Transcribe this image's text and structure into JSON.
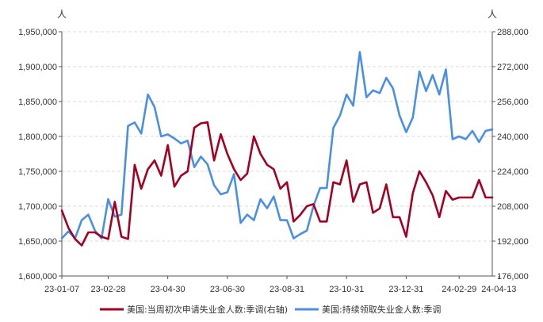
{
  "chart_data": {
    "type": "line",
    "left_axis": {
      "unit_label": "人",
      "ylim": [
        1600000,
        1950000
      ],
      "ticks": [
        1600000,
        1650000,
        1700000,
        1750000,
        1800000,
        1850000,
        1900000,
        1950000
      ],
      "tick_labels": [
        "1,600,000",
        "1,650,000",
        "1,700,000",
        "1,750,000",
        "1,800,000",
        "1,850,000",
        "1,900,000",
        "1,950,000"
      ]
    },
    "right_axis": {
      "unit_label": "人",
      "ylim": [
        176000,
        288000
      ],
      "ticks": [
        176000,
        192000,
        208000,
        224000,
        240000,
        256000,
        272000,
        288000
      ],
      "tick_labels": [
        "176,000",
        "192,000",
        "208,000",
        "224,000",
        "240,000",
        "256,000",
        "272,000",
        "288,000"
      ]
    },
    "x_tick_labels": [
      "23-01-07",
      "23-02-28",
      "23-04-30",
      "23-06-30",
      "23-08-31",
      "23-10-31",
      "23-12-31",
      "24-02-29",
      "24-04-13"
    ],
    "x_tick_index": [
      0,
      7,
      16,
      25,
      34,
      43,
      52,
      60,
      66
    ],
    "grid": true,
    "legend_position": "bottom",
    "series": [
      {
        "name": "美国:当周初次申请失业金人数:季调(右轴)",
        "axis": "right",
        "color": "#A50021",
        "values": [
          206000,
          198000,
          193000,
          190000,
          196000,
          196000,
          194000,
          193000,
          210000,
          194000,
          193000,
          227000,
          216000,
          225000,
          229000,
          222000,
          236000,
          217000,
          222000,
          224000,
          244000,
          246000,
          246500,
          229000,
          241000,
          232000,
          225000,
          220000,
          223000,
          240000,
          232000,
          227000,
          225000,
          216000,
          219000,
          201000,
          204000,
          208000,
          209000,
          201000,
          201000,
          219000,
          218000,
          229000,
          210000,
          218000,
          219000,
          205000,
          207000,
          218000,
          203000,
          203000,
          194000,
          214000,
          224000,
          219000,
          213000,
          203000,
          215000,
          211000,
          212000,
          212000,
          212000,
          220000,
          212000,
          212000
        ]
      },
      {
        "name": "美国:持续领取失业金人数:季调",
        "axis": "left",
        "color": "#4A90E2",
        "values": [
          1654000,
          1664000,
          1654000,
          1680000,
          1688000,
          1665000,
          1654000,
          1710000,
          1685000,
          1688000,
          1815000,
          1820000,
          1804000,
          1860000,
          1842000,
          1800000,
          1803000,
          1797000,
          1790000,
          1794000,
          1756000,
          1771000,
          1760000,
          1730000,
          1717000,
          1720000,
          1746000,
          1676000,
          1688000,
          1680000,
          1710000,
          1697000,
          1714000,
          1680000,
          1680000,
          1654000,
          1660000,
          1665000,
          1700000,
          1726000,
          1726000,
          1812000,
          1830000,
          1860000,
          1844000,
          1921000,
          1856000,
          1866000,
          1862000,
          1884000,
          1869000,
          1830000,
          1806000,
          1827000,
          1893000,
          1865000,
          1888000,
          1860000,
          1896000,
          1796000,
          1800000,
          1796000,
          1808000,
          1792000,
          1808000,
          1810000
        ]
      }
    ]
  }
}
